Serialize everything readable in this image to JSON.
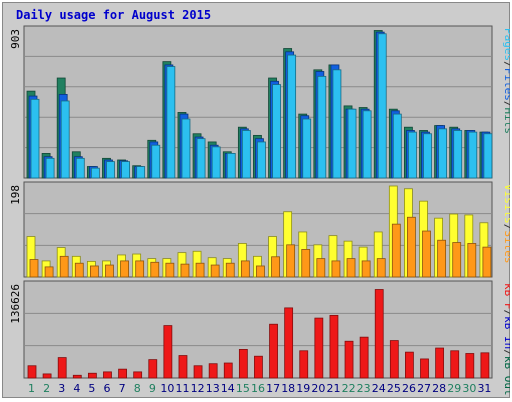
{
  "title": "Daily usage for August 2015",
  "colors": {
    "pages": "#2cc0f0",
    "files": "#1060e0",
    "hits": "#208060",
    "visits": "#ffff30",
    "sites": "#ff9818",
    "kbf": "#ee1818",
    "kbin": "#0000cc",
    "kbout": "#006644",
    "weekend_day": "#208060",
    "weekday": "#000080"
  },
  "chart_data": [
    {
      "type": "bar",
      "title": "Daily usage for August 2015",
      "categories": [
        "1",
        "2",
        "3",
        "4",
        "5",
        "6",
        "7",
        "8",
        "9",
        "10",
        "11",
        "12",
        "13",
        "14",
        "15",
        "16",
        "17",
        "18",
        "19",
        "20",
        "21",
        "22",
        "23",
        "24",
        "25",
        "26",
        "27",
        "28",
        "29",
        "30",
        "31"
      ],
      "ymax_label": "903",
      "ylim": [
        0,
        903
      ],
      "legend": [
        "Pages",
        "/",
        "Files",
        "/",
        "Hits"
      ],
      "series": [
        {
          "name": "Hits",
          "values": [
            530,
            150,
            610,
            160,
            70,
            120,
            110,
            75,
            230,
            710,
            400,
            270,
            220,
            160,
            310,
            260,
            610,
            790,
            390,
            660,
            690,
            440,
            430,
            900,
            420,
            310,
            290,
            320,
            310,
            290,
            280
          ]
        },
        {
          "name": "Files",
          "values": [
            500,
            130,
            510,
            130,
            70,
            110,
            105,
            70,
            220,
            690,
            390,
            250,
            200,
            150,
            300,
            240,
            590,
            770,
            380,
            650,
            690,
            420,
            420,
            890,
            410,
            290,
            280,
            320,
            300,
            290,
            280
          ]
        },
        {
          "name": "Pages",
          "values": [
            480,
            120,
            470,
            120,
            60,
            100,
            100,
            70,
            200,
            680,
            360,
            240,
            190,
            150,
            290,
            220,
            570,
            750,
            360,
            620,
            660,
            420,
            410,
            880,
            390,
            280,
            270,
            300,
            290,
            280,
            270
          ]
        }
      ]
    },
    {
      "type": "bar",
      "categories": [
        "1",
        "2",
        "3",
        "4",
        "5",
        "6",
        "7",
        "8",
        "9",
        "10",
        "11",
        "12",
        "13",
        "14",
        "15",
        "16",
        "17",
        "18",
        "19",
        "20",
        "21",
        "22",
        "23",
        "24",
        "25",
        "26",
        "27",
        "28",
        "29",
        "30",
        "31"
      ],
      "ymax_label": "198",
      "ylim": [
        0,
        198
      ],
      "legend": [
        "Visits",
        "/",
        "Sites"
      ],
      "series": [
        {
          "name": "Visits",
          "values": [
            88,
            35,
            64,
            45,
            34,
            35,
            48,
            50,
            40,
            40,
            53,
            56,
            42,
            40,
            73,
            45,
            88,
            142,
            98,
            70,
            90,
            78,
            65,
            98,
            198,
            192,
            165,
            128,
            137,
            135,
            118
          ]
        },
        {
          "name": "Sites",
          "values": [
            38,
            22,
            45,
            30,
            24,
            26,
            35,
            35,
            32,
            30,
            28,
            30,
            26,
            30,
            35,
            24,
            44,
            70,
            60,
            40,
            35,
            40,
            35,
            40,
            115,
            130,
            100,
            80,
            75,
            73,
            65
          ]
        }
      ]
    },
    {
      "type": "bar",
      "categories": [
        "1",
        "2",
        "3",
        "4",
        "5",
        "6",
        "7",
        "8",
        "9",
        "10",
        "11",
        "12",
        "13",
        "14",
        "15",
        "16",
        "17",
        "18",
        "19",
        "20",
        "21",
        "22",
        "23",
        "24",
        "25",
        "26",
        "27",
        "28",
        "29",
        "30",
        "31"
      ],
      "ymax_label": "136626",
      "ylim": [
        0,
        136626
      ],
      "legend": [
        "kB F",
        "/",
        "kB In",
        "/",
        "kB Out"
      ],
      "series": [
        {
          "name": "kB F",
          "values": [
            18000,
            6000,
            30000,
            4000,
            7000,
            9000,
            13000,
            9000,
            27000,
            77000,
            33000,
            18000,
            21000,
            22000,
            42000,
            32000,
            79000,
            103000,
            40000,
            88000,
            92000,
            54000,
            60000,
            130000,
            55000,
            38000,
            28000,
            44000,
            40000,
            36000,
            37000
          ]
        }
      ]
    }
  ],
  "days_weekend": [
    1,
    2,
    8,
    9,
    15,
    16,
    22,
    23,
    29,
    30
  ]
}
